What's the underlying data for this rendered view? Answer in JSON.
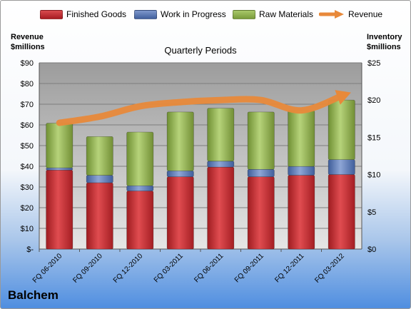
{
  "company": "Balchem",
  "legend": [
    {
      "label": "Finished Goods",
      "color": "#c0282d"
    },
    {
      "label": "Work in Progress",
      "color": "#4f6fb0"
    },
    {
      "label": "Raw Materials",
      "color": "#8cb04a"
    },
    {
      "label": "Revenue",
      "color": "#e8893a"
    }
  ],
  "left_axis_title": [
    "Revenue",
    "$millions"
  ],
  "right_axis_title": [
    "Inventory",
    "$millions"
  ],
  "chart_data": {
    "type": "bar",
    "stacked": true,
    "title": "Quarterly Periods",
    "categories": [
      "FQ 06-2010",
      "FQ 09-2010",
      "FQ 12-2010",
      "FQ 03-2011",
      "FQ 06-2011",
      "FQ 09-2011",
      "FQ 12-2011",
      "FQ 03-2012"
    ],
    "y_left": {
      "label": "Revenue $millions",
      "min": 0,
      "max": 90,
      "step": 10,
      "tick_labels": [
        "$-",
        "$10",
        "$20",
        "$30",
        "$40",
        "$50",
        "$60",
        "$70",
        "$80",
        "$90"
      ]
    },
    "y_right": {
      "label": "Inventory $millions",
      "min": 0,
      "max": 25,
      "step": 5,
      "tick_labels": [
        "$0",
        "$5",
        "$10",
        "$15",
        "$20",
        "$25"
      ]
    },
    "series": [
      {
        "name": "Finished Goods",
        "axis": "right",
        "values": [
          10.6,
          8.9,
          7.8,
          9.7,
          11.0,
          9.7,
          9.9,
          10.0
        ]
      },
      {
        "name": "Work in Progress",
        "axis": "right",
        "values": [
          0.3,
          1.0,
          0.7,
          0.8,
          0.8,
          1.0,
          1.2,
          2.0
        ]
      },
      {
        "name": "Raw Materials",
        "axis": "right",
        "values": [
          6.0,
          5.2,
          7.2,
          7.9,
          7.1,
          7.7,
          7.5,
          8.0
        ]
      },
      {
        "name": "Revenue",
        "axis": "left",
        "type": "line",
        "values": [
          61,
          64,
          69,
          71,
          72,
          72,
          67,
          74
        ]
      }
    ],
    "grid": true,
    "legend_position": "top"
  }
}
